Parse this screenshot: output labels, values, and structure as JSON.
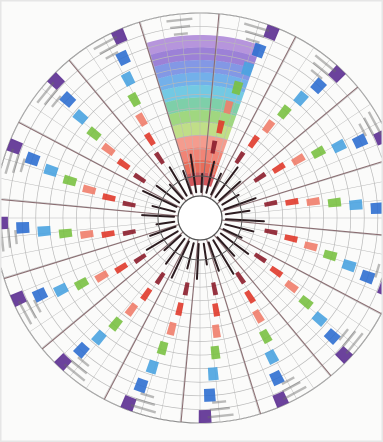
{
  "artwork": {
    "kind": "hand-drawn-circular-tracking-chart",
    "colors": {
      "paper": "#fbfbfa",
      "ink": "#555555",
      "grid": "#b9b9b9",
      "violet": "#5b2d91",
      "blue": "#2f6fd0",
      "sky": "#4aa3e0",
      "green": "#7ac143",
      "coral": "#ef7d6a",
      "red": "#e03a2b",
      "dark_red": "#8c1d2b",
      "top_wedge": [
        "#a983d6",
        "#8b6bd0",
        "#6d86e0",
        "#5aa2e6",
        "#5bc0de",
        "#67c79a",
        "#8fd06a",
        "#b5d873",
        "#f28b7a",
        "#ef6f5e",
        "#e5533d",
        "#c93a3e",
        "#a02a4a"
      ]
    }
  }
}
